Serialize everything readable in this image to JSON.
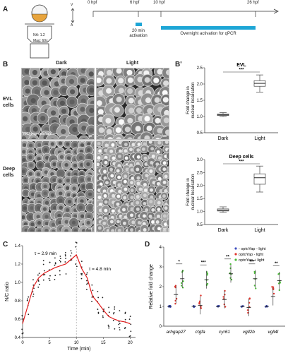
{
  "panel_a": {
    "label": "A",
    "axis_v": "V",
    "axis_a": "A",
    "na": "NA: 1.2",
    "mag": "Mag: 60x",
    "ticks": [
      "0 hpf",
      "6 hpf",
      "10 hpf",
      "26 hpf"
    ],
    "tick_values_hpf": [
      0,
      6,
      10,
      26
    ],
    "activation_short": "20 min\nactivation",
    "activation_short_l1": "20 min",
    "activation_short_l2": "activation",
    "activation_long": "Overnight activation for qPCR",
    "bar_color": "#1ea6d6"
  },
  "panel_b": {
    "label": "B",
    "col_dark": "Dark",
    "col_light": "Light",
    "row_evl_l1": "EVL",
    "row_evl_l2": "cells",
    "row_deep_l1": "Deep",
    "row_deep_l2": "cells",
    "construct": "mCherry-optoYap"
  },
  "panel_bprime": {
    "label": "B'",
    "chart_data": [
      {
        "type": "box",
        "title": "EVL",
        "ylabel": "Fold change in nuclear localisation",
        "categories": [
          "Dark",
          "Light"
        ],
        "ylim": [
          0.5,
          2.5
        ],
        "yticks": [
          "0.5",
          "1.0",
          "1.5",
          "2.0",
          "2.5"
        ],
        "boxes": [
          {
            "name": "Dark",
            "min": 1.0,
            "q1": 1.03,
            "median": 1.05,
            "q3": 1.08,
            "max": 1.12
          },
          {
            "name": "Light",
            "min": 1.75,
            "q1": 1.93,
            "median": 2.02,
            "q3": 2.1,
            "max": 2.28
          }
        ],
        "significance": "***"
      },
      {
        "type": "box",
        "title": "Deep cells",
        "ylabel": "Fold change in nuclear localisation",
        "categories": [
          "Dark",
          "Light"
        ],
        "ylim": [
          0.5,
          3.0
        ],
        "yticks": [
          "0.5",
          "1.0",
          "1.5",
          "2.0",
          "2.5",
          "3.0"
        ],
        "boxes": [
          {
            "name": "Dark",
            "min": 0.97,
            "q1": 1.02,
            "median": 1.05,
            "q3": 1.1,
            "max": 1.18
          },
          {
            "name": "Light",
            "min": 1.75,
            "q1": 2.05,
            "median": 2.3,
            "q3": 2.45,
            "max": 2.75
          }
        ],
        "significance": "***"
      }
    ]
  },
  "panel_c": {
    "label": "C",
    "tau_on": "τ = 2.9 min",
    "tau_off": "τ = 4.8 min",
    "chart_data": {
      "type": "line",
      "xlabel": "Time (min)",
      "ylabel": "N/C ratio",
      "xlim": [
        0,
        21
      ],
      "ylim": [
        0.4,
        1.4
      ],
      "xticks": [
        "0",
        "5",
        "10",
        "15",
        "20"
      ],
      "yticks": [
        "0.4",
        "0.6",
        "0.8",
        "1.0",
        "1.2",
        "1.4"
      ],
      "series": [
        {
          "x": [
            0,
            1,
            2,
            3,
            4,
            5,
            6,
            7,
            8,
            9,
            10,
            11,
            12,
            13,
            14,
            15,
            16,
            17,
            18,
            19,
            20
          ],
          "y": [
            0.55,
            0.75,
            0.95,
            1.05,
            1.1,
            1.13,
            1.16,
            1.18,
            1.2,
            1.25,
            1.3,
            1.15,
            1.05,
            0.85,
            0.78,
            0.7,
            0.63,
            0.6,
            0.58,
            0.57,
            0.55
          ],
          "color": "#e01b1b"
        }
      ],
      "vline_x": 10
    }
  },
  "panel_d": {
    "label": "D",
    "chart_data": {
      "type": "scatter",
      "ylabel": "Relative fold change",
      "ylim": [
        0,
        4
      ],
      "yticks": [
        "0",
        "1",
        "2",
        "3",
        "4"
      ],
      "categories": [
        "arhgap27",
        "ctgfa",
        "cyr61",
        "vgll2b",
        "vgll4l"
      ],
      "significance": [
        "*",
        "***",
        "**",
        "***",
        "**"
      ],
      "series": [
        {
          "name": "- optoYap - light",
          "color": "#3f4fc0",
          "values": [
            1.0,
            1.0,
            1.0,
            1.0,
            1.0
          ]
        },
        {
          "name": "optoYap - light",
          "color": "#e0342c",
          "values": [
            1.6,
            1.05,
            1.35,
            0.95,
            1.5
          ]
        },
        {
          "name": "optoYap + light",
          "color": "#4cbb3a",
          "values": [
            2.4,
            2.35,
            2.65,
            2.4,
            2.3
          ]
        }
      ]
    }
  }
}
